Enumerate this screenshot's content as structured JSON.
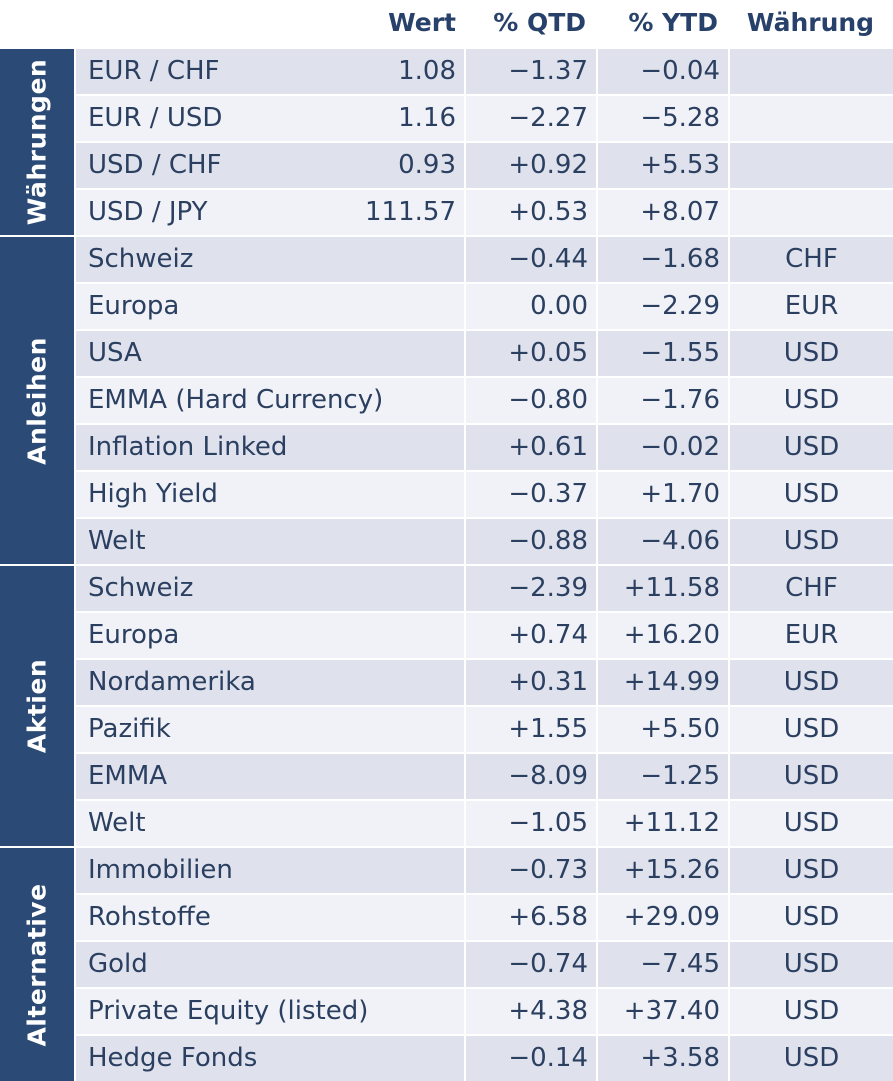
{
  "header": {
    "wert": "Wert",
    "qtd": "% QTD",
    "ytd": "% YTD",
    "currency": "Währung"
  },
  "groups": [
    {
      "label": "Währungen",
      "rows": [
        {
          "name": "EUR / CHF",
          "wert": "1.08",
          "qtd": "−1.37",
          "ytd": "−0.04",
          "cur": ""
        },
        {
          "name": "EUR / USD",
          "wert": "1.16",
          "qtd": "−2.27",
          "ytd": "−5.28",
          "cur": ""
        },
        {
          "name": "USD / CHF",
          "wert": "0.93",
          "qtd": "+0.92",
          "ytd": "+5.53",
          "cur": ""
        },
        {
          "name": "USD / JPY",
          "wert": "111.57",
          "qtd": "+0.53",
          "ytd": "+8.07",
          "cur": ""
        }
      ]
    },
    {
      "label": "Anleihen",
      "rows": [
        {
          "name": "Schweiz",
          "wert": "",
          "qtd": "−0.44",
          "ytd": "−1.68",
          "cur": "CHF"
        },
        {
          "name": "Europa",
          "wert": "",
          "qtd": "0.00",
          "ytd": "−2.29",
          "cur": "EUR"
        },
        {
          "name": "USA",
          "wert": "",
          "qtd": "+0.05",
          "ytd": "−1.55",
          "cur": "USD"
        },
        {
          "name": "EMMA (Hard Currency)",
          "wert": "",
          "qtd": "−0.80",
          "ytd": "−1.76",
          "cur": "USD"
        },
        {
          "name": "Inflation Linked",
          "wert": "",
          "qtd": "+0.61",
          "ytd": "−0.02",
          "cur": "USD"
        },
        {
          "name": "High Yield",
          "wert": "",
          "qtd": "−0.37",
          "ytd": "+1.70",
          "cur": "USD"
        },
        {
          "name": "Welt",
          "wert": "",
          "qtd": "−0.88",
          "ytd": "−4.06",
          "cur": "USD"
        }
      ]
    },
    {
      "label": "Aktien",
      "rows": [
        {
          "name": "Schweiz",
          "wert": "",
          "qtd": "−2.39",
          "ytd": "+11.58",
          "cur": "CHF"
        },
        {
          "name": "Europa",
          "wert": "",
          "qtd": "+0.74",
          "ytd": "+16.20",
          "cur": "EUR"
        },
        {
          "name": "Nordamerika",
          "wert": "",
          "qtd": "+0.31",
          "ytd": "+14.99",
          "cur": "USD"
        },
        {
          "name": "Pazifik",
          "wert": "",
          "qtd": "+1.55",
          "ytd": "+5.50",
          "cur": "USD"
        },
        {
          "name": "EMMA",
          "wert": "",
          "qtd": "−8.09",
          "ytd": "−1.25",
          "cur": "USD"
        },
        {
          "name": "Welt",
          "wert": "",
          "qtd": "−1.05",
          "ytd": "+11.12",
          "cur": "USD"
        }
      ]
    },
    {
      "label": "Alternative",
      "rows": [
        {
          "name": "Immobilien",
          "wert": "",
          "qtd": "−0.73",
          "ytd": "+15.26",
          "cur": "USD"
        },
        {
          "name": "Rohstoffe",
          "wert": "",
          "qtd": "+6.58",
          "ytd": "+29.09",
          "cur": "USD"
        },
        {
          "name": "Gold",
          "wert": "",
          "qtd": "−0.74",
          "ytd": "−7.45",
          "cur": "USD"
        },
        {
          "name": "Private Equity (listed)",
          "wert": "",
          "qtd": "+4.38",
          "ytd": "+37.40",
          "cur": "USD"
        },
        {
          "name": "Hedge Fonds",
          "wert": "",
          "qtd": "−0.14",
          "ytd": "+3.58",
          "cur": "USD"
        }
      ]
    }
  ]
}
